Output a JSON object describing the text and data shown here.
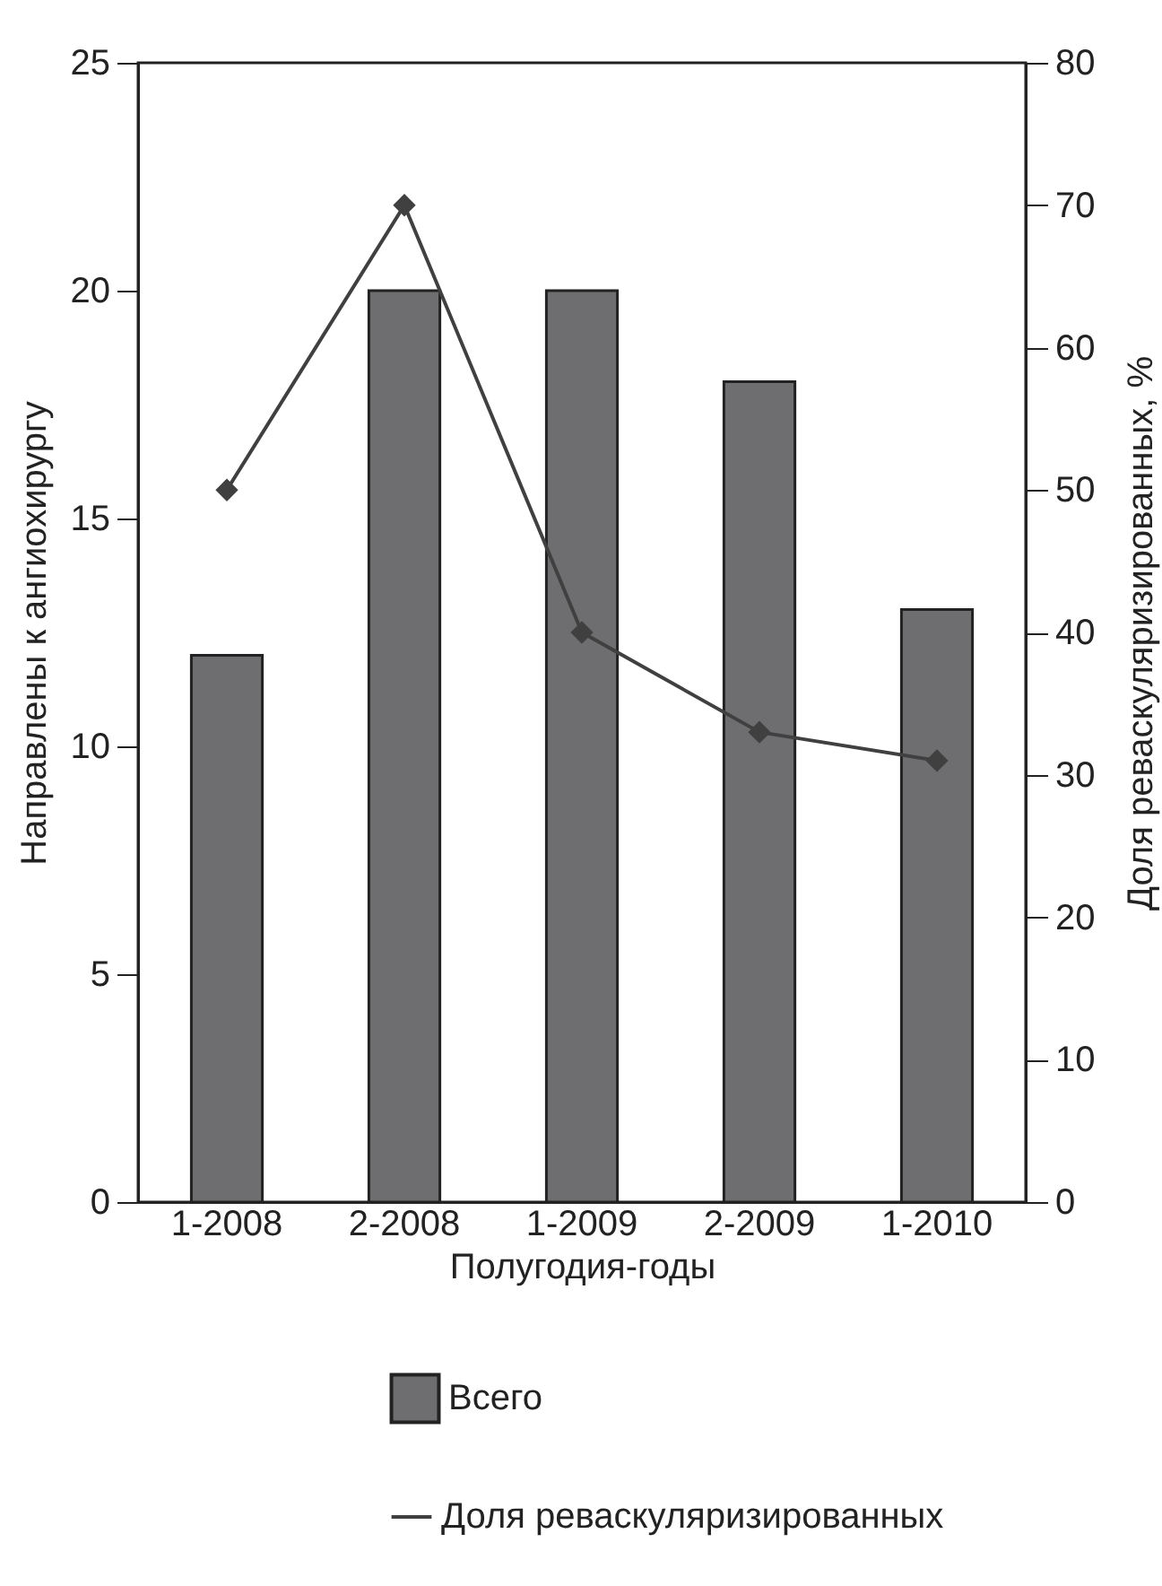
{
  "chart_data": {
    "type": "bar",
    "xlabel": "Полугодия-годы",
    "ylabel": "Направлены к ангиохирургу",
    "y2label": "Доля реваскуляризированных, %",
    "categories": [
      "1-2008",
      "2-2008",
      "1-2009",
      "2-2009",
      "1-2010"
    ],
    "series": [
      {
        "name": "Всего",
        "color": "#6e6e70",
        "values": [
          12,
          20,
          20,
          18,
          13
        ]
      },
      {
        "name": "Доля реваскуляризированных",
        "type": "line",
        "axis": "y2",
        "color": "#404040",
        "values": [
          50,
          70,
          40,
          33,
          31
        ]
      }
    ],
    "ylim": [
      0,
      25
    ],
    "yticks": [
      0,
      5,
      10,
      15,
      20,
      25
    ],
    "y2lim": [
      0,
      80
    ],
    "y2ticks": [
      0,
      10,
      20,
      30,
      40,
      50,
      60,
      70,
      80
    ],
    "marker": "diamond",
    "legend": "bottom",
    "grid": false
  }
}
